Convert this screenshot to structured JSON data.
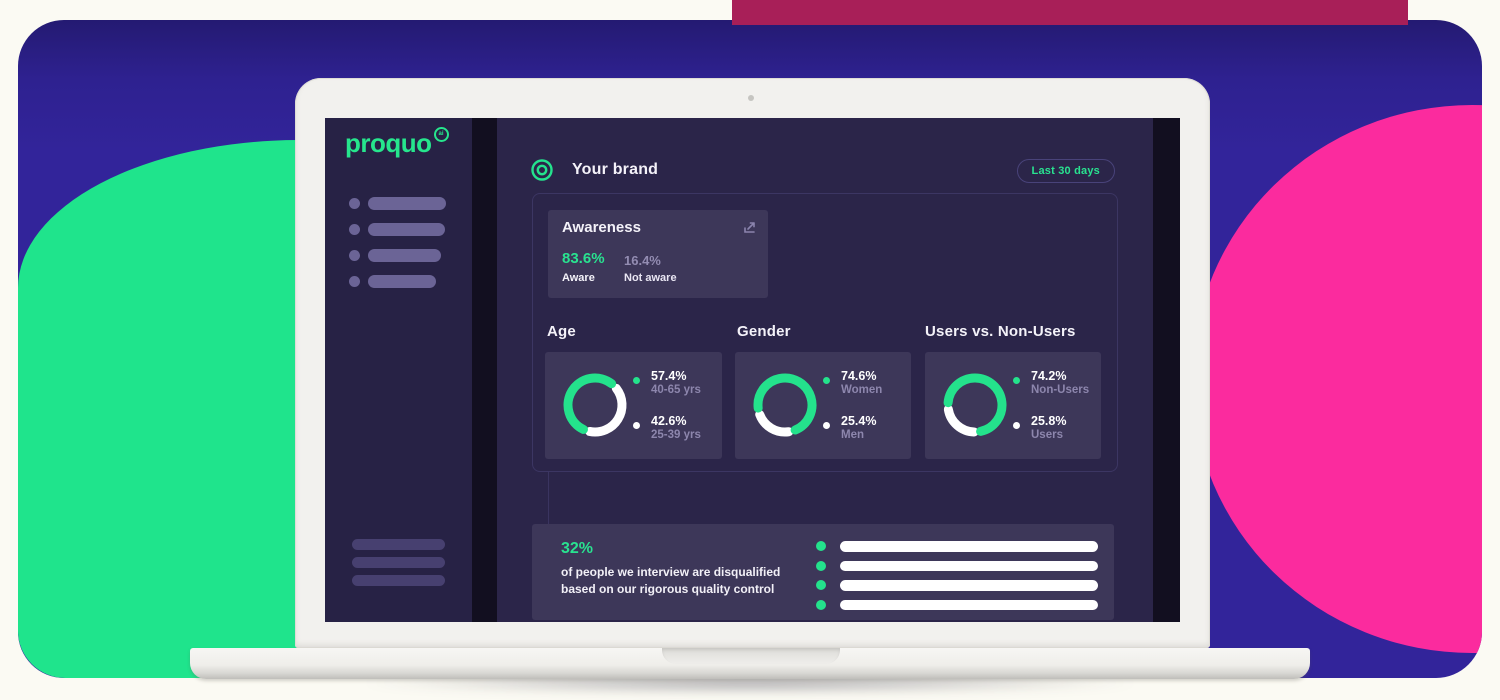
{
  "colors": {
    "accent_green": "#24e28c",
    "logo_green": "#26e68d",
    "hot_pink": "#fb2b9e",
    "panel_indigo": "#32249a",
    "top_bar_crimson": "#a81f58",
    "screen_bg": "#151126",
    "sidebar_bg": "#272245",
    "main_bg": "#2b2549",
    "card_bg": "#3d3759",
    "white_text": "#f4f2f9",
    "muted_text": "#938cb2"
  },
  "screen": {
    "logo": {
      "word": "proquo",
      "badge": "ai"
    },
    "header": {
      "title": "Your brand",
      "range_button": "Last 30 days"
    },
    "awareness": {
      "title": "Awareness",
      "primary_value": "83.6%",
      "primary_label": "Aware",
      "secondary_value": "16.4%",
      "secondary_label": "Not aware"
    },
    "donut_cards": [
      {
        "title": "Age",
        "green_pct": 57.4,
        "start": -45,
        "segments": [
          {
            "value": "57.4%",
            "label": "40-65 yrs",
            "color": "#24e28c"
          },
          {
            "value": "42.6%",
            "label": "25-39 yrs",
            "color": "#ffffff"
          }
        ]
      },
      {
        "title": "Gender",
        "green_pct": 74.6,
        "start": 75,
        "segments": [
          {
            "value": "74.6%",
            "label": "Women",
            "color": "#24e28c"
          },
          {
            "value": "25.4%",
            "label": "Men",
            "color": "#ffffff"
          }
        ]
      },
      {
        "title": "Users vs. Non-Users",
        "green_pct": 74.2,
        "start": 85,
        "segments": [
          {
            "value": "74.2%",
            "label": "Non-Users",
            "color": "#24e28c"
          },
          {
            "value": "25.8%",
            "label": "Users",
            "color": "#ffffff"
          }
        ]
      }
    ],
    "quality": {
      "stat": "32%",
      "line1": "of people we interview are disqualified",
      "line2": "based on our rigorous quality control"
    }
  }
}
